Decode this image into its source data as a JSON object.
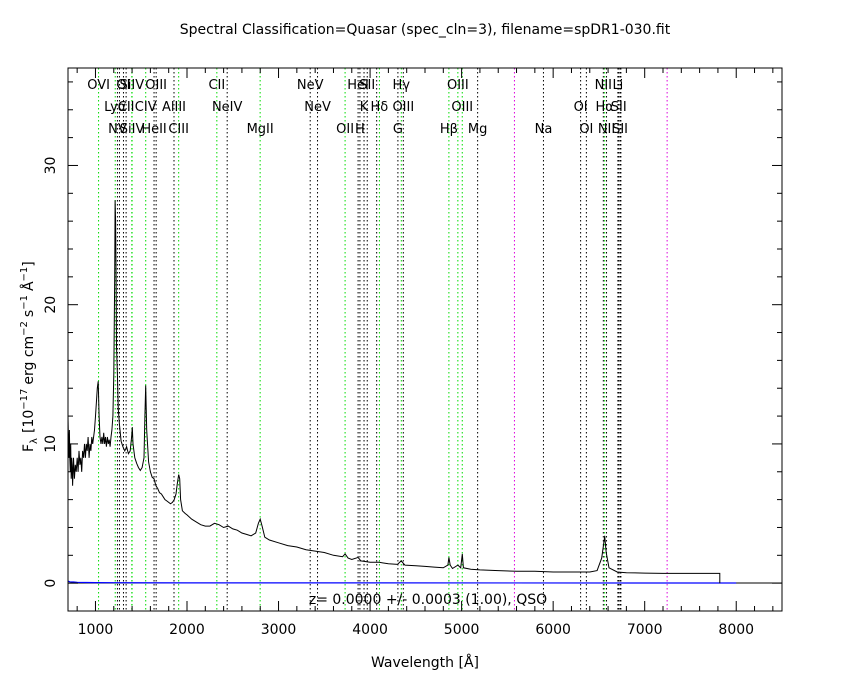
{
  "chart_data": {
    "type": "line",
    "title": "Spectral Classification=Quasar (spec_cln=3), filename=spDR1-030.fit",
    "xlabel": "Wavelength [Å]",
    "ylabel_parts": {
      "flux": "F",
      "flux_sub": "λ",
      "bracket_open": "[10",
      "exp1": "−17",
      "units1": "erg cm",
      "exp2": "−2",
      "units2": "s",
      "exp3": "−1",
      "units3": "Å",
      "exp4": "−1",
      "bracket_close": "]"
    },
    "annotation": "z= 0.0000 +/- 0.0003 (1.00), QSO",
    "xlim": [
      700,
      8500
    ],
    "ylim": [
      -2,
      37
    ],
    "xticks": [
      1000,
      2000,
      3000,
      4000,
      5000,
      6000,
      7000,
      8000
    ],
    "yticks": [
      0,
      10,
      20,
      30
    ],
    "colors": {
      "spectrum": "#000000",
      "error": "#0000ff",
      "green": "#00dd00",
      "black": "#000000",
      "magenta": "#dd00dd"
    },
    "spectrum": [
      [
        700,
        12
      ],
      [
        705,
        10
      ],
      [
        710,
        9
      ],
      [
        715,
        11
      ],
      [
        720,
        9
      ],
      [
        725,
        8
      ],
      [
        730,
        10
      ],
      [
        735,
        7.5
      ],
      [
        740,
        9
      ],
      [
        745,
        8.5
      ],
      [
        750,
        7
      ],
      [
        760,
        9
      ],
      [
        770,
        7.5
      ],
      [
        780,
        8.5
      ],
      [
        790,
        8
      ],
      [
        800,
        9
      ],
      [
        810,
        8
      ],
      [
        820,
        9.5
      ],
      [
        830,
        8.5
      ],
      [
        840,
        9
      ],
      [
        850,
        8
      ],
      [
        860,
        9.5
      ],
      [
        870,
        9
      ],
      [
        880,
        10
      ],
      [
        890,
        9
      ],
      [
        900,
        10
      ],
      [
        910,
        9.5
      ],
      [
        920,
        10.5
      ],
      [
        930,
        9
      ],
      [
        940,
        10
      ],
      [
        950,
        9.5
      ],
      [
        960,
        10.5
      ],
      [
        970,
        10
      ],
      [
        980,
        10.5
      ],
      [
        990,
        11
      ],
      [
        1000,
        12
      ],
      [
        1010,
        13
      ],
      [
        1020,
        14
      ],
      [
        1030,
        14.5
      ],
      [
        1040,
        12
      ],
      [
        1050,
        10.5
      ],
      [
        1060,
        10
      ],
      [
        1070,
        10.5
      ],
      [
        1080,
        10
      ],
      [
        1090,
        10.8
      ],
      [
        1100,
        10
      ],
      [
        1110,
        10.5
      ],
      [
        1120,
        9.8
      ],
      [
        1130,
        10.5
      ],
      [
        1140,
        10
      ],
      [
        1150,
        10.3
      ],
      [
        1160,
        9.8
      ],
      [
        1170,
        10.5
      ],
      [
        1180,
        11
      ],
      [
        1190,
        12
      ],
      [
        1200,
        15
      ],
      [
        1210,
        22
      ],
      [
        1215,
        27.5
      ],
      [
        1220,
        26
      ],
      [
        1225,
        22
      ],
      [
        1230,
        17
      ],
      [
        1240,
        15
      ],
      [
        1250,
        12.5
      ],
      [
        1260,
        11.5
      ],
      [
        1280,
        10.2
      ],
      [
        1300,
        9.8
      ],
      [
        1320,
        9.5
      ],
      [
        1340,
        9.8
      ],
      [
        1360,
        9.3
      ],
      [
        1380,
        9.5
      ],
      [
        1395,
        10.5
      ],
      [
        1402,
        11.2
      ],
      [
        1410,
        10
      ],
      [
        1430,
        9
      ],
      [
        1450,
        8.6
      ],
      [
        1470,
        8.3
      ],
      [
        1490,
        8.1
      ],
      [
        1510,
        8.3
      ],
      [
        1530,
        9
      ],
      [
        1540,
        12
      ],
      [
        1549,
        14.2
      ],
      [
        1560,
        11
      ],
      [
        1580,
        8.7
      ],
      [
        1600,
        8
      ],
      [
        1620,
        7.6
      ],
      [
        1640,
        7.5
      ],
      [
        1660,
        7
      ],
      [
        1680,
        6.8
      ],
      [
        1700,
        6.5
      ],
      [
        1720,
        6.4
      ],
      [
        1740,
        6.2
      ],
      [
        1760,
        6
      ],
      [
        1780,
        5.9
      ],
      [
        1800,
        5.8
      ],
      [
        1820,
        5.7
      ],
      [
        1840,
        5.8
      ],
      [
        1860,
        6
      ],
      [
        1880,
        6.4
      ],
      [
        1895,
        7.2
      ],
      [
        1909,
        7.8
      ],
      [
        1920,
        7.5
      ],
      [
        1930,
        6
      ],
      [
        1950,
        5.2
      ],
      [
        1980,
        5
      ],
      [
        2000,
        4.9
      ],
      [
        2050,
        4.6
      ],
      [
        2100,
        4.4
      ],
      [
        2150,
        4.2
      ],
      [
        2200,
        4.1
      ],
      [
        2250,
        4.1
      ],
      [
        2300,
        4.3
      ],
      [
        2350,
        4.2
      ],
      [
        2400,
        4
      ],
      [
        2450,
        4.1
      ],
      [
        2500,
        3.9
      ],
      [
        2550,
        3.8
      ],
      [
        2600,
        3.6
      ],
      [
        2650,
        3.5
      ],
      [
        2700,
        3.4
      ],
      [
        2750,
        3.6
      ],
      [
        2780,
        4.3
      ],
      [
        2800,
        4.6
      ],
      [
        2820,
        4.1
      ],
      [
        2850,
        3.3
      ],
      [
        2900,
        3.1
      ],
      [
        3000,
        2.9
      ],
      [
        3100,
        2.7
      ],
      [
        3200,
        2.6
      ],
      [
        3300,
        2.4
      ],
      [
        3400,
        2.3
      ],
      [
        3500,
        2.2
      ],
      [
        3600,
        2.0
      ],
      [
        3700,
        1.9
      ],
      [
        3727,
        2.1
      ],
      [
        3760,
        1.8
      ],
      [
        3800,
        1.7
      ],
      [
        3869,
        1.85
      ],
      [
        3900,
        1.6
      ],
      [
        4000,
        1.5
      ],
      [
        4100,
        1.5
      ],
      [
        4200,
        1.4
      ],
      [
        4300,
        1.35
      ],
      [
        4340,
        1.6
      ],
      [
        4380,
        1.3
      ],
      [
        4500,
        1.25
      ],
      [
        4600,
        1.2
      ],
      [
        4700,
        1.15
      ],
      [
        4800,
        1.1
      ],
      [
        4850,
        1.3
      ],
      [
        4861,
        1.85
      ],
      [
        4875,
        1.3
      ],
      [
        4900,
        1.05
      ],
      [
        4959,
        1.3
      ],
      [
        4990,
        1.1
      ],
      [
        5007,
        2.1
      ],
      [
        5020,
        1.1
      ],
      [
        5100,
        1.0
      ],
      [
        5200,
        0.95
      ],
      [
        5400,
        0.9
      ],
      [
        5600,
        0.85
      ],
      [
        5800,
        0.85
      ],
      [
        6000,
        0.8
      ],
      [
        6200,
        0.8
      ],
      [
        6400,
        0.8
      ],
      [
        6480,
        0.9
      ],
      [
        6530,
        1.8
      ],
      [
        6555,
        3.0
      ],
      [
        6563,
        3.4
      ],
      [
        6580,
        2.2
      ],
      [
        6610,
        1.1
      ],
      [
        6700,
        0.8
      ],
      [
        6800,
        0.75
      ],
      [
        7000,
        0.72
      ],
      [
        7200,
        0.7
      ],
      [
        7500,
        0.7
      ],
      [
        7800,
        0.7
      ],
      [
        7820,
        0.7
      ],
      [
        7820,
        0.0
      ]
    ],
    "error": [
      [
        700,
        0.15
      ],
      [
        720,
        0.1
      ],
      [
        760,
        0.08
      ],
      [
        800,
        0.06
      ],
      [
        900,
        0.05
      ],
      [
        1000,
        0.04
      ],
      [
        1200,
        0.03
      ],
      [
        2000,
        0.02
      ],
      [
        4000,
        0.015
      ],
      [
        8000,
        0.01
      ]
    ],
    "lines": [
      {
        "w": 1034,
        "color": "green",
        "label": "OVI",
        "row": 0
      },
      {
        "w": 1216,
        "color": "green",
        "label": "Lyα",
        "row": 1
      },
      {
        "w": 1240,
        "color": "black",
        "label": "NV",
        "row": 2
      },
      {
        "w": 1262,
        "color": "black",
        "label": "",
        "row": 0
      },
      {
        "w": 1335,
        "color": "black",
        "label": "CII",
        "row": 1
      },
      {
        "w": 1306,
        "color": "black",
        "label": "OI",
        "row": 0
      },
      {
        "w": 1397,
        "color": "green",
        "label": "SiIV",
        "row": 0
      },
      {
        "w": 1400,
        "color": "green",
        "label": "SiIV",
        "row": 2
      },
      {
        "w": 1549,
        "color": "green",
        "label": "CIV",
        "row": 1
      },
      {
        "w": 1640,
        "color": "black",
        "label": "HeII",
        "row": 2
      },
      {
        "w": 1663,
        "color": "black",
        "label": "OIII",
        "row": 0
      },
      {
        "w": 1858,
        "color": "black",
        "label": "AlIII",
        "row": 1
      },
      {
        "w": 1909,
        "color": "green",
        "label": "CIII",
        "row": 2
      },
      {
        "w": 2326,
        "color": "green",
        "label": "CII",
        "row": 0
      },
      {
        "w": 2439,
        "color": "black",
        "label": "NeIV",
        "row": 1
      },
      {
        "w": 2799,
        "color": "green",
        "label": "MgII",
        "row": 2
      },
      {
        "w": 3346,
        "color": "black",
        "label": "NeV",
        "row": 0
      },
      {
        "w": 3426,
        "color": "black",
        "label": "NeV",
        "row": 1
      },
      {
        "w": 3727,
        "color": "green",
        "label": "OII",
        "row": 2
      },
      {
        "w": 3869,
        "color": "black",
        "label": "HeI",
        "row": 0
      },
      {
        "w": 3889,
        "color": "black",
        "label": "H",
        "row": 2
      },
      {
        "w": 3934,
        "color": "black",
        "label": "K",
        "row": 1
      },
      {
        "w": 3969,
        "color": "black",
        "label": "SII",
        "row": 0
      },
      {
        "w": 4072,
        "color": "black",
        "label": "",
        "row": 0
      },
      {
        "w": 4102,
        "color": "green",
        "label": "Hδ",
        "row": 1
      },
      {
        "w": 4304,
        "color": "black",
        "label": "G",
        "row": 2
      },
      {
        "w": 4341,
        "color": "green",
        "label": "Hγ",
        "row": 0
      },
      {
        "w": 4363,
        "color": "black",
        "label": "OIII",
        "row": 1
      },
      {
        "w": 4861,
        "color": "green",
        "label": "Hβ",
        "row": 2
      },
      {
        "w": 4959,
        "color": "green",
        "label": "OIII",
        "row": 0
      },
      {
        "w": 5007,
        "color": "green",
        "label": "OIII",
        "row": 1
      },
      {
        "w": 5175,
        "color": "black",
        "label": "Mg",
        "row": 2
      },
      {
        "w": 5577,
        "color": "magenta",
        "label": "",
        "row": 0
      },
      {
        "w": 5894,
        "color": "black",
        "label": "Na",
        "row": 2
      },
      {
        "w": 6300,
        "color": "black",
        "label": "OI",
        "row": 1
      },
      {
        "w": 6363,
        "color": "black",
        "label": "OI",
        "row": 2
      },
      {
        "w": 6548,
        "color": "black",
        "label": "NII",
        "row": 0
      },
      {
        "w": 6563,
        "color": "green",
        "label": "Hα",
        "row": 1
      },
      {
        "w": 6583,
        "color": "black",
        "label": "NII",
        "row": 2
      },
      {
        "w": 6707,
        "color": "black",
        "label": "Li",
        "row": 0
      },
      {
        "w": 6716,
        "color": "black",
        "label": "SII",
        "row": 1
      },
      {
        "w": 6731,
        "color": "black",
        "label": "SII",
        "row": 2
      },
      {
        "w": 6740,
        "color": "black",
        "label": "",
        "row": 0
      },
      {
        "w": 7245,
        "color": "magenta",
        "label": "",
        "row": 0
      }
    ]
  }
}
